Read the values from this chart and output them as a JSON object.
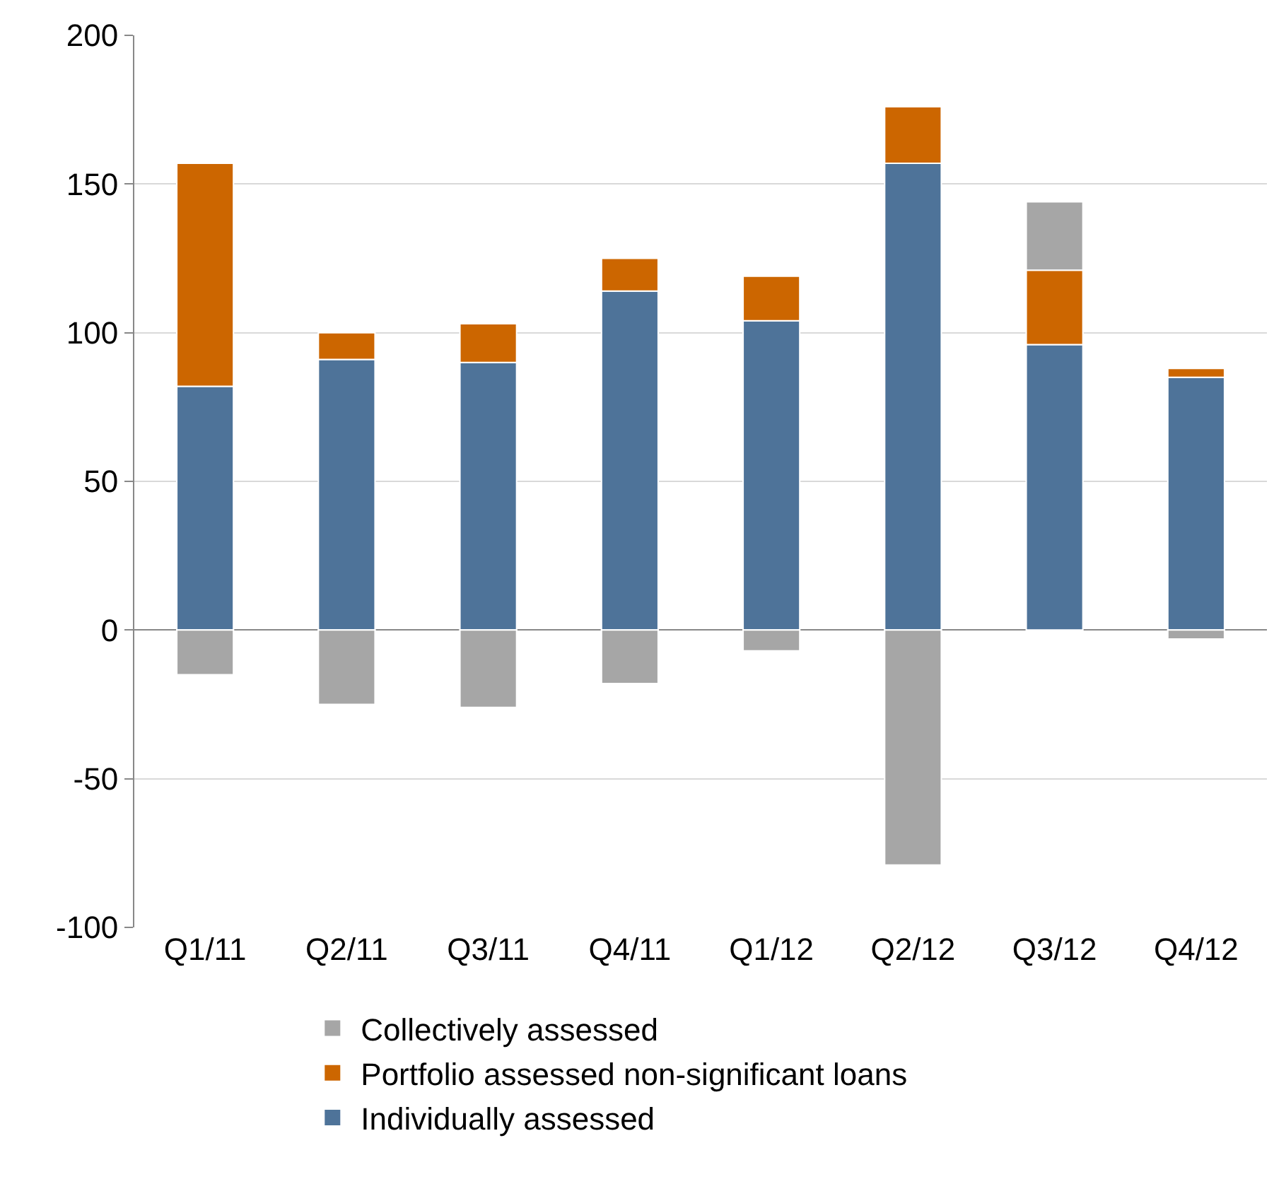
{
  "chart_data": {
    "type": "bar",
    "stacked": true,
    "categories": [
      "Q1/11",
      "Q2/11",
      "Q3/11",
      "Q4/11",
      "Q1/12",
      "Q2/12",
      "Q3/12",
      "Q4/12"
    ],
    "series": [
      {
        "name": "Individually assessed",
        "color": "#4e7399",
        "values": [
          82,
          91,
          90,
          114,
          104,
          157,
          96,
          85
        ]
      },
      {
        "name": "Portfolio assessed non-significant loans",
        "color": "#cc6600",
        "values": [
          75,
          9,
          13,
          11,
          15,
          19,
          25,
          3
        ]
      },
      {
        "name": "Collectively assessed",
        "color": "#a6a6a6",
        "values": [
          -15,
          -25,
          -26,
          -18,
          -7,
          -79,
          23,
          -3
        ]
      }
    ],
    "ylim": [
      -100,
      200
    ],
    "yticks": [
      -100,
      -50,
      0,
      50,
      100,
      150,
      200
    ],
    "grid": "y",
    "legend": "bottom"
  }
}
